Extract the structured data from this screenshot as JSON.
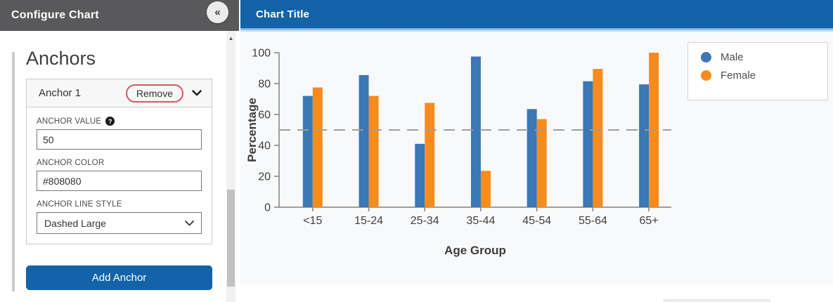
{
  "panel": {
    "title": "Configure Chart",
    "collapse_icon": "«",
    "section_title": "Anchors",
    "anchor_card": {
      "title": "Anchor 1",
      "remove_label": "Remove",
      "value_label": "ANCHOR VALUE",
      "help_glyph": "?",
      "value": "50",
      "color_label": "ANCHOR COLOR",
      "color": "#808080",
      "line_style_label": "ANCHOR LINE STYLE",
      "line_style": "Dashed Large"
    },
    "add_button_label": "Add Anchor"
  },
  "chart_panel": {
    "title": "Chart Title"
  },
  "chart_data": {
    "type": "bar",
    "title": "Chart Title",
    "categories": [
      "<15",
      "15-24",
      "25-34",
      "35-44",
      "45-54",
      "55-64",
      "65+"
    ],
    "series": [
      {
        "name": "Male",
        "color": "#3b78b5",
        "values": [
          72,
          85.5,
          41,
          97.5,
          63.5,
          81.5,
          79.5
        ]
      },
      {
        "name": "Female",
        "color": "#f68b1f",
        "values": [
          77.5,
          72,
          67.5,
          23.5,
          57,
          89.5,
          100
        ]
      }
    ],
    "xlabel": "Age Group",
    "ylabel": "Percentage",
    "ylim": [
      0,
      100
    ],
    "yticks": [
      0,
      20,
      40,
      60,
      80,
      100
    ],
    "anchor_line": {
      "value": 50,
      "color": "#9e9e9e",
      "style": "Dashed Large"
    },
    "legend_position": "top-right",
    "grid": false
  },
  "colors": {
    "accent_blue": "#1263a8",
    "panel_header_gray": "#59595b",
    "axis_gray": "#808080",
    "tick_text": "#404040"
  }
}
